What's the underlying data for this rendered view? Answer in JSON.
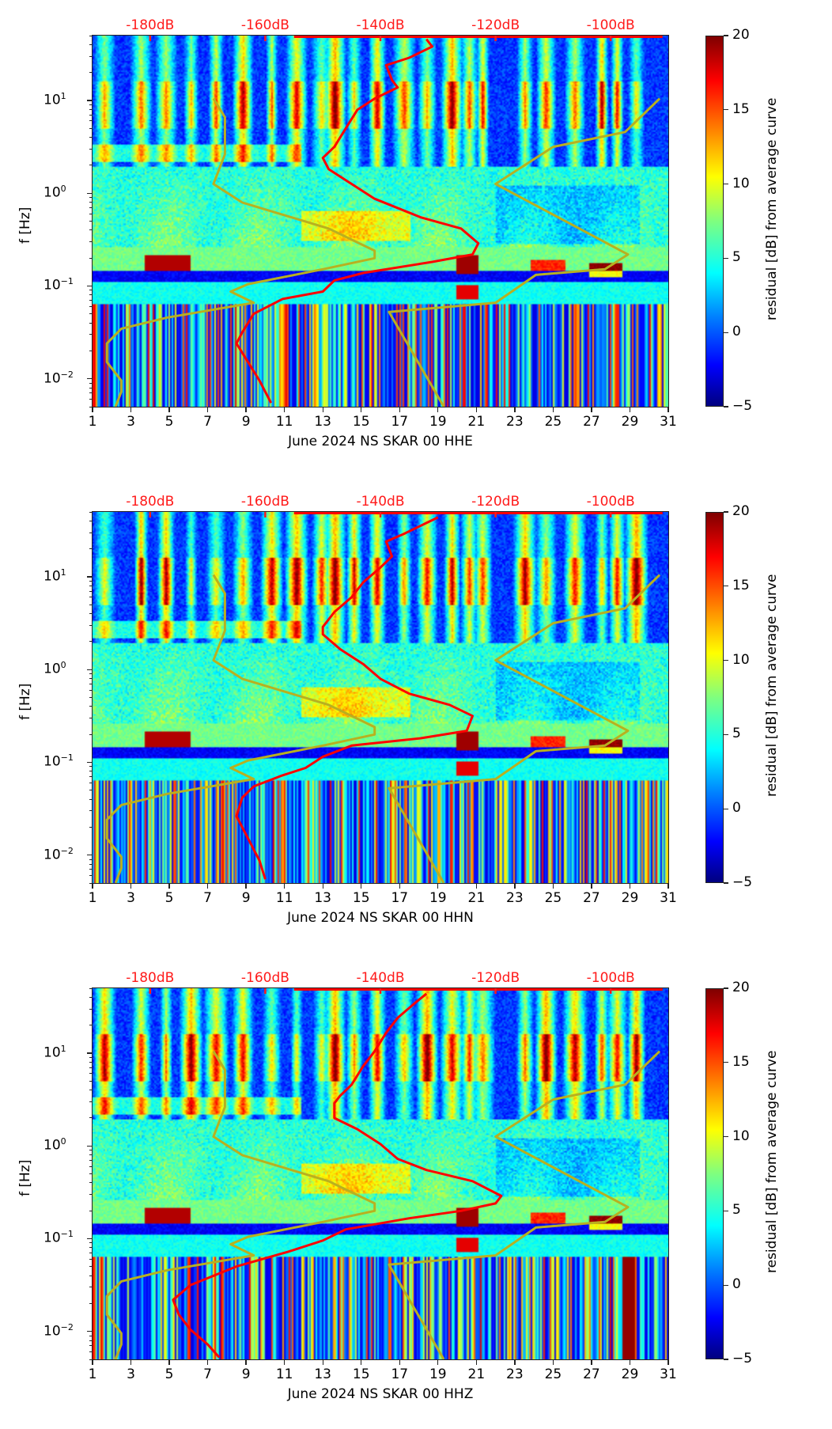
{
  "figure": {
    "colorbar": {
      "label": "residual [dB] from average curve",
      "range": [
        -5,
        20
      ],
      "ticks": [
        "20",
        "15",
        "10",
        "5",
        "0",
        "−5"
      ],
      "colormap": "jet"
    },
    "y_axis": {
      "label": "f [Hz]",
      "scale": "log",
      "range_hz": [
        0.005,
        50
      ],
      "tick_labels": [
        {
          "base": "10",
          "exp": "1",
          "value": 10
        },
        {
          "base": "10",
          "exp": "0",
          "value": 1
        },
        {
          "base": "10",
          "exp": "−1",
          "value": 0.1
        },
        {
          "base": "10",
          "exp": "−2",
          "value": 0.01
        }
      ]
    },
    "x_axis": {
      "range_days": [
        1,
        31
      ],
      "tick_labels": [
        "1",
        "3",
        "5",
        "7",
        "9",
        "11",
        "13",
        "15",
        "17",
        "19",
        "21",
        "23",
        "25",
        "27",
        "29",
        "31"
      ]
    },
    "top_axis": {
      "range_db": [
        -190,
        -90
      ],
      "tick_labels": [
        {
          "label": "-180dB",
          "value": -180
        },
        {
          "label": "-160dB",
          "value": -160
        },
        {
          "label": "-140dB",
          "value": -140
        },
        {
          "label": "-120dB",
          "value": -120
        },
        {
          "label": "-100dB",
          "value": -100
        }
      ],
      "color": "#ff1a1a"
    },
    "colors": {
      "average_curve": "#ff0000",
      "noise_models": "#b8b020"
    }
  },
  "chart_data": [
    {
      "type": "heatmap",
      "title": "June 2024 NS SKAR 00 HHE",
      "xlabel": "June 2024 NS SKAR 00 HHE",
      "ylabel": "f [Hz]",
      "xlim": [
        1,
        31
      ],
      "ylim": [
        0.005,
        50
      ],
      "top_xlim_db": [
        -190,
        -90
      ],
      "grid": false,
      "colorbar": {
        "label": "residual [dB] from average curve",
        "range": [
          -5,
          20
        ]
      },
      "average_curve": {
        "name": "average PSD",
        "points_db_logf": [
          [
            -132,
            1.66
          ],
          [
            -131,
            1.58
          ],
          [
            -135,
            1.46
          ],
          [
            -139,
            1.38
          ],
          [
            -138,
            1.22
          ],
          [
            -137,
            1.14
          ],
          [
            -141,
            1.02
          ],
          [
            -144,
            0.9
          ],
          [
            -146,
            0.7
          ],
          [
            -148,
            0.5
          ],
          [
            -150,
            0.38
          ],
          [
            -149,
            0.26
          ],
          [
            -145,
            0.1
          ],
          [
            -141,
            -0.06
          ],
          [
            -133,
            -0.26
          ],
          [
            -126,
            -0.38
          ],
          [
            -123,
            -0.54
          ],
          [
            -124,
            -0.66
          ],
          [
            -131,
            -0.74
          ],
          [
            -143,
            -0.86
          ],
          [
            -148,
            -0.94
          ],
          [
            -150,
            -1.06
          ],
          [
            -157,
            -1.14
          ],
          [
            -162,
            -1.3
          ],
          [
            -164,
            -1.5
          ],
          [
            -165,
            -1.62
          ],
          [
            -163,
            -1.82
          ],
          [
            -161,
            -2.02
          ],
          [
            -159,
            -2.26
          ]
        ]
      },
      "nlnm": {
        "name": "Peterson NLNM",
        "points_db_logf": [
          [
            -169,
            1.02
          ],
          [
            -167,
            0.82
          ],
          [
            -167,
            0.42
          ],
          [
            -169,
            0.1
          ],
          [
            -164,
            -0.1
          ],
          [
            -149,
            -0.38
          ],
          [
            -141,
            -0.62
          ],
          [
            -141,
            -0.7
          ],
          [
            -150,
            -0.82
          ],
          [
            -163,
            -0.98
          ],
          [
            -166,
            -1.06
          ],
          [
            -162,
            -1.18
          ],
          [
            -177,
            -1.34
          ],
          [
            -185,
            -1.46
          ],
          [
            -187.5,
            -1.62
          ],
          [
            -187.5,
            -1.82
          ],
          [
            -185,
            -2.02
          ],
          [
            -185,
            -2.14
          ],
          [
            -186,
            -2.3
          ]
        ]
      },
      "nhnm": {
        "name": "Peterson NHNM",
        "points_db_logf": [
          [
            -91.5,
            1.02
          ],
          [
            -97.5,
            0.66
          ],
          [
            -110,
            0.5
          ],
          [
            -120,
            0.1
          ],
          [
            -97,
            -0.66
          ],
          [
            -101,
            -0.82
          ],
          [
            -113,
            -0.88
          ],
          [
            -120,
            -1.18
          ],
          [
            -138.5,
            -1.28
          ],
          [
            -129,
            -2.3
          ]
        ]
      }
    },
    {
      "type": "heatmap",
      "title": "June 2024 NS SKAR 00 HHN",
      "xlabel": "June 2024 NS SKAR 00 HHN",
      "ylabel": "f [Hz]",
      "xlim": [
        1,
        31
      ],
      "ylim": [
        0.005,
        50
      ],
      "top_xlim_db": [
        -190,
        -90
      ],
      "grid": false,
      "colorbar": {
        "label": "residual [dB] from average curve",
        "range": [
          -5,
          20
        ]
      },
      "average_curve": {
        "name": "average PSD",
        "points_db_logf": [
          [
            -130,
            1.64
          ],
          [
            -132,
            1.58
          ],
          [
            -136,
            1.46
          ],
          [
            -139,
            1.38
          ],
          [
            -138,
            1.22
          ],
          [
            -140,
            1.1
          ],
          [
            -143,
            0.94
          ],
          [
            -145,
            0.78
          ],
          [
            -148,
            0.62
          ],
          [
            -150,
            0.46
          ],
          [
            -150,
            0.38
          ],
          [
            -147,
            0.22
          ],
          [
            -143,
            0.06
          ],
          [
            -140,
            -0.1
          ],
          [
            -135,
            -0.26
          ],
          [
            -128,
            -0.38
          ],
          [
            -124,
            -0.5
          ],
          [
            -125,
            -0.66
          ],
          [
            -133,
            -0.74
          ],
          [
            -145,
            -0.82
          ],
          [
            -150,
            -0.94
          ],
          [
            -153,
            -1.06
          ],
          [
            -157,
            -1.14
          ],
          [
            -162,
            -1.26
          ],
          [
            -164,
            -1.38
          ],
          [
            -165,
            -1.58
          ],
          [
            -163,
            -1.82
          ],
          [
            -161,
            -2.06
          ],
          [
            -160,
            -2.26
          ]
        ]
      },
      "nlnm": {
        "name": "Peterson NLNM",
        "points_db_logf": [
          [
            -169,
            1.02
          ],
          [
            -167,
            0.82
          ],
          [
            -167,
            0.42
          ],
          [
            -169,
            0.1
          ],
          [
            -164,
            -0.1
          ],
          [
            -149,
            -0.38
          ],
          [
            -141,
            -0.62
          ],
          [
            -141,
            -0.7
          ],
          [
            -150,
            -0.82
          ],
          [
            -163,
            -0.98
          ],
          [
            -166,
            -1.06
          ],
          [
            -162,
            -1.18
          ],
          [
            -177,
            -1.34
          ],
          [
            -185,
            -1.46
          ],
          [
            -187.5,
            -1.62
          ],
          [
            -187.5,
            -1.82
          ],
          [
            -185,
            -2.02
          ],
          [
            -185,
            -2.14
          ],
          [
            -186,
            -2.3
          ]
        ]
      },
      "nhnm": {
        "name": "Peterson NHNM",
        "points_db_logf": [
          [
            -91.5,
            1.02
          ],
          [
            -97.5,
            0.66
          ],
          [
            -110,
            0.5
          ],
          [
            -120,
            0.1
          ],
          [
            -97,
            -0.66
          ],
          [
            -101,
            -0.82
          ],
          [
            -113,
            -0.88
          ],
          [
            -120,
            -1.18
          ],
          [
            -138.5,
            -1.28
          ],
          [
            -129,
            -2.3
          ]
        ]
      }
    },
    {
      "type": "heatmap",
      "title": "June 2024 NS SKAR 00 HHZ",
      "xlabel": "June 2024 NS SKAR 00 HHZ",
      "ylabel": "f [Hz]",
      "xlim": [
        1,
        31
      ],
      "ylim": [
        0.005,
        50
      ],
      "top_xlim_db": [
        -190,
        -90
      ],
      "grid": false,
      "colorbar": {
        "label": "residual [dB] from average curve",
        "range": [
          -5,
          20
        ]
      },
      "average_curve": {
        "name": "average PSD",
        "points_db_logf": [
          [
            -132,
            1.64
          ],
          [
            -134,
            1.54
          ],
          [
            -137,
            1.38
          ],
          [
            -139,
            1.22
          ],
          [
            -141,
            1.02
          ],
          [
            -143,
            0.86
          ],
          [
            -145,
            0.66
          ],
          [
            -147,
            0.54
          ],
          [
            -148,
            0.46
          ],
          [
            -148,
            0.3
          ],
          [
            -144,
            0.18
          ],
          [
            -140,
            0.02
          ],
          [
            -137,
            -0.14
          ],
          [
            -132,
            -0.26
          ],
          [
            -124,
            -0.38
          ],
          [
            -119,
            -0.54
          ],
          [
            -120,
            -0.62
          ],
          [
            -126,
            -0.7
          ],
          [
            -135,
            -0.78
          ],
          [
            -146,
            -0.9
          ],
          [
            -150,
            -1.02
          ],
          [
            -156,
            -1.14
          ],
          [
            -165,
            -1.3
          ],
          [
            -173,
            -1.5
          ],
          [
            -176,
            -1.66
          ],
          [
            -175,
            -1.82
          ],
          [
            -173,
            -1.98
          ],
          [
            -170,
            -2.14
          ],
          [
            -168,
            -2.28
          ]
        ]
      },
      "nlnm": {
        "name": "Peterson NLNM",
        "points_db_logf": [
          [
            -169,
            1.02
          ],
          [
            -167,
            0.82
          ],
          [
            -167,
            0.42
          ],
          [
            -169,
            0.1
          ],
          [
            -164,
            -0.1
          ],
          [
            -149,
            -0.38
          ],
          [
            -141,
            -0.62
          ],
          [
            -141,
            -0.7
          ],
          [
            -150,
            -0.82
          ],
          [
            -163,
            -0.98
          ],
          [
            -166,
            -1.06
          ],
          [
            -162,
            -1.18
          ],
          [
            -177,
            -1.34
          ],
          [
            -185,
            -1.46
          ],
          [
            -187.5,
            -1.62
          ],
          [
            -187.5,
            -1.82
          ],
          [
            -185,
            -2.02
          ],
          [
            -185,
            -2.14
          ],
          [
            -186,
            -2.3
          ]
        ]
      },
      "nhnm": {
        "name": "Peterson NHNM",
        "points_db_logf": [
          [
            -91.5,
            1.02
          ],
          [
            -97.5,
            0.66
          ],
          [
            -110,
            0.5
          ],
          [
            -120,
            0.1
          ],
          [
            -97,
            -0.66
          ],
          [
            -101,
            -0.82
          ],
          [
            -113,
            -0.88
          ],
          [
            -120,
            -1.18
          ],
          [
            -138.5,
            -1.28
          ],
          [
            -129,
            -2.3
          ]
        ]
      }
    }
  ]
}
